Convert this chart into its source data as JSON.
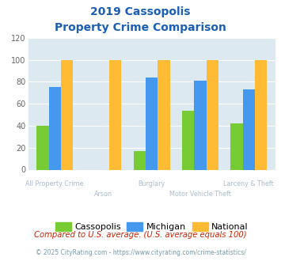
{
  "title_line1": "2019 Cassopolis",
  "title_line2": "Property Crime Comparison",
  "categories": [
    "All Property Crime",
    "Arson",
    "Burglary",
    "Motor Vehicle Theft",
    "Larceny & Theft"
  ],
  "cassopolis": [
    40,
    0,
    17,
    54,
    42
  ],
  "michigan": [
    75,
    0,
    84,
    81,
    73
  ],
  "national": [
    100,
    100,
    100,
    100,
    100
  ],
  "color_cassopolis": "#77cc33",
  "color_michigan": "#4499ee",
  "color_national": "#ffbb33",
  "ylim": [
    0,
    120
  ],
  "yticks": [
    0,
    20,
    40,
    60,
    80,
    100,
    120
  ],
  "bg_color": "#dce9f0",
  "legend_labels": [
    "Cassopolis",
    "Michigan",
    "National"
  ],
  "footnote1": "Compared to U.S. average. (U.S. average equals 100)",
  "footnote2": "© 2025 CityRating.com - https://www.cityrating.com/crime-statistics/",
  "title_color": "#1a5fb4",
  "axis_label_color": "#aabbcc",
  "footnote1_color": "#cc2200",
  "footnote2_color": "#7799aa",
  "title_fontsize": 10,
  "bar_width": 0.25
}
